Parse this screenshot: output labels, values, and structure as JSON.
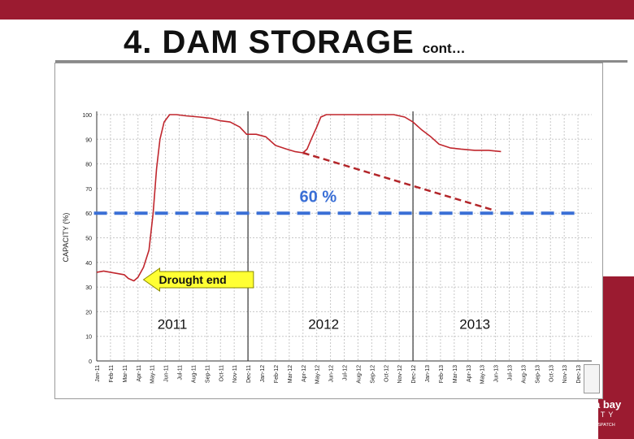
{
  "slide": {
    "title": "4. DAM STORAGE",
    "title_suffix": "cont…"
  },
  "logo": {
    "name": "nelson mandela bay",
    "subtitle": "MUNICIPALITY",
    "towns": "PORT ELIZABETH | UITENHAGE | DESPATCH"
  },
  "colors": {
    "band": "#9b1b30",
    "storage_line": "#c0262d",
    "threshold_line": "#3a6fd6",
    "threshold_label": "#3a6fd6",
    "trend_line": "#b3262a",
    "arrow_fill": "#ffff33"
  },
  "chart_data": {
    "type": "line",
    "ylabel": "CAPACITY (%)",
    "ylim": [
      0,
      100
    ],
    "yticks": [
      0,
      10,
      20,
      30,
      40,
      50,
      60,
      70,
      80,
      90,
      100
    ],
    "categories": [
      "Jan-11",
      "Feb-11",
      "Mar-11",
      "Apr-11",
      "May-11",
      "Jun-11",
      "Jul-11",
      "Aug-11",
      "Sep-11",
      "Oct-11",
      "Nov-11",
      "Dec-11",
      "Jan-12",
      "Feb-12",
      "Mar-12",
      "Apr-12",
      "May-12",
      "Jun-12",
      "Jul-12",
      "Aug-12",
      "Sep-12",
      "Oct-12",
      "Nov-12",
      "Dec-12",
      "Jan-13",
      "Feb-13",
      "Mar-13",
      "Apr-13",
      "May-13",
      "Jun-13",
      "Jul-13",
      "Aug-13",
      "Sep-13",
      "Oct-13",
      "Nov-13",
      "Dec-13"
    ],
    "series": [
      {
        "points": [
          [
            0,
            36
          ],
          [
            0.5,
            36.5
          ],
          [
            1,
            36
          ],
          [
            1.5,
            35.5
          ],
          [
            2,
            35
          ],
          [
            2.3,
            33.5
          ],
          [
            2.7,
            32.5
          ],
          [
            3,
            34
          ],
          [
            3.4,
            38
          ],
          [
            3.8,
            45
          ],
          [
            4.1,
            60
          ],
          [
            4.35,
            78
          ],
          [
            4.6,
            90
          ],
          [
            4.9,
            97
          ],
          [
            5.3,
            100
          ],
          [
            5.8,
            100
          ],
          [
            6.5,
            99.5
          ],
          [
            7.5,
            99
          ],
          [
            8.3,
            98.5
          ],
          [
            9,
            97.5
          ],
          [
            9.7,
            97
          ],
          [
            10.4,
            95
          ],
          [
            10.9,
            92
          ],
          [
            11.6,
            92
          ],
          [
            12.3,
            91
          ],
          [
            13,
            87.5
          ],
          [
            13.8,
            86
          ],
          [
            14.4,
            85
          ],
          [
            15,
            84.5
          ],
          [
            15.3,
            86
          ],
          [
            15.6,
            90
          ],
          [
            16,
            95
          ],
          [
            16.3,
            99
          ],
          [
            16.7,
            100
          ],
          [
            17.5,
            100
          ],
          [
            19,
            100
          ],
          [
            20.5,
            100
          ],
          [
            21.6,
            100
          ],
          [
            22.4,
            99
          ],
          [
            23,
            97
          ],
          [
            23.6,
            94
          ],
          [
            24.3,
            91
          ],
          [
            24.9,
            88
          ],
          [
            25.7,
            86.5
          ],
          [
            26.5,
            86
          ],
          [
            27.5,
            85.5
          ],
          [
            28.5,
            85.5
          ],
          [
            29.4,
            85
          ]
        ]
      },
      {
        "name": "60 %",
        "points": [
          [
            -0.2,
            60
          ],
          [
            34.8,
            60
          ]
        ]
      },
      {
        "points": [
          [
            15,
            84.5
          ],
          [
            29,
            61
          ]
        ]
      }
    ],
    "annotations": {
      "threshold_label": "60 %",
      "arrow_label": "Drought end",
      "arrow_value": 33,
      "year_labels": [
        {
          "label": "2011",
          "at": 5.5,
          "value": 13
        },
        {
          "label": "2012",
          "at": 16.5,
          "value": 13
        },
        {
          "label": "2013",
          "at": 27.5,
          "value": 13
        }
      ]
    },
    "grid": true
  }
}
